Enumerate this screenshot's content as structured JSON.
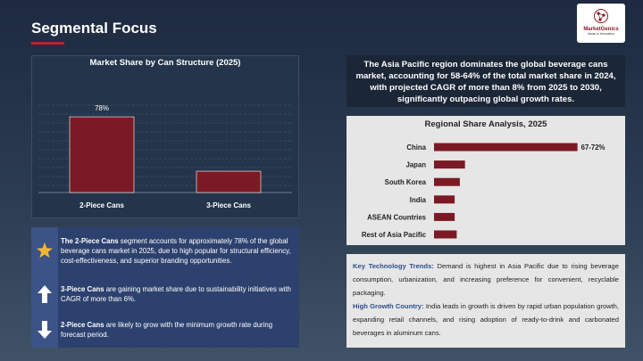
{
  "title": "Segmental Focus",
  "logo": {
    "name": "MarketGenics",
    "tagline": "Ideas to Innovation"
  },
  "chart_data": [
    {
      "type": "bar",
      "title": "Market Share by Can Structure (2025)",
      "categories": [
        "2-Piece Cans",
        "3-Piece Cans"
      ],
      "values": [
        78,
        22
      ],
      "value_labels": [
        "78%",
        null
      ],
      "color": "#7b1a24",
      "ylim": [
        0,
        90
      ],
      "grid": true
    },
    {
      "type": "hbar",
      "title": "Regional Share Analysis, 2025",
      "categories": [
        "China",
        "Japan",
        "South Korea",
        "India",
        "ASEAN Countries",
        "Rest of Asia Pacific"
      ],
      "values": [
        69.5,
        15,
        12.5,
        10,
        10,
        11
      ],
      "value_labels": [
        "67-72%",
        null,
        null,
        null,
        null,
        null
      ],
      "color": "#7b1a24",
      "xlim": [
        0,
        90
      ]
    }
  ],
  "callout": "The Asia Pacific region dominates the global beverage cans market, accounting for 58-64% of the total market share in 2024, with projected CAGR of more than 8% from 2025 to 2030, significantly outpacing global growth rates.",
  "highlights": [
    {
      "bold": "The 2-Piece Cans",
      "text": " segment accounts for approximately 78% of the global beverage cans market in 2025, due to high popular for structural efficiency, cost-effectiveness, and superior branding opportunities."
    },
    {
      "bold": "3-Piece Cans",
      "text": " are gaining market share due to sustainability initiatives with CAGR of more than 6%."
    },
    {
      "bold": "2-Piece Cans",
      "text": " are likely to grow with the minimum growth rate during forecast period."
    }
  ],
  "trends": [
    {
      "label": "Key Technology Trends:",
      "text": " Demand is highest in Asia Pacific due to rising beverage consumption, urbanization, and increasing preference for convenient, recyclable packaging."
    },
    {
      "label": "High Growth Country:",
      "text": " India leads in growth is driven by rapid urban population growth, expanding retail channels, and rising adoption of ready-to-drink and carbonated beverages in aluminum cans."
    }
  ]
}
